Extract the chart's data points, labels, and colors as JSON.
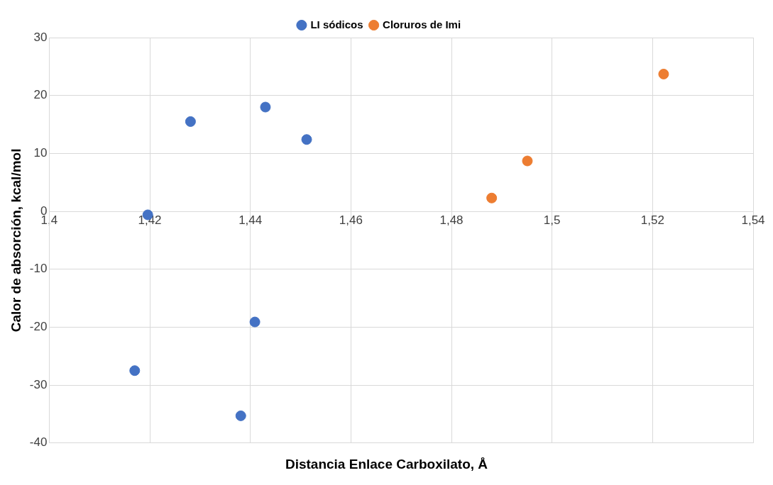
{
  "chart_data": {
    "type": "scatter",
    "xlabel": "Distancia Enlace Carboxilato, Å",
    "ylabel": "Calor de absorción, kcal/mol",
    "xlim": [
      1.4,
      1.54
    ],
    "xticks": [
      {
        "value": 1.4,
        "label": "1,4"
      },
      {
        "value": 1.42,
        "label": "1,42"
      },
      {
        "value": 1.44,
        "label": "1,44"
      },
      {
        "value": 1.46,
        "label": "1,46"
      },
      {
        "value": 1.48,
        "label": "1,48"
      },
      {
        "value": 1.5,
        "label": "1,5"
      },
      {
        "value": 1.52,
        "label": "1,52"
      },
      {
        "value": 1.54,
        "label": "1,54"
      }
    ],
    "ylim": [
      -40,
      30
    ],
    "yticks": [
      -40,
      -30,
      -20,
      -10,
      0,
      10,
      20,
      30
    ],
    "grid": true,
    "legend": "top",
    "marker": "circle",
    "series": [
      {
        "name": "LI sódicos",
        "color": "#4472c4",
        "x": [
          1.4196,
          1.4281,
          1.443,
          1.4512,
          1.4409,
          1.4381,
          1.417
        ],
        "values": [
          -0.6,
          15.5,
          18.0,
          12.4,
          -19.1,
          -35.3,
          -27.5
        ]
      },
      {
        "name": "Cloruros de Imi",
        "color": "#ed7d31",
        "x": [
          1.488,
          1.4951,
          1.5222
        ],
        "values": [
          2.3,
          8.7,
          23.7
        ]
      }
    ]
  }
}
